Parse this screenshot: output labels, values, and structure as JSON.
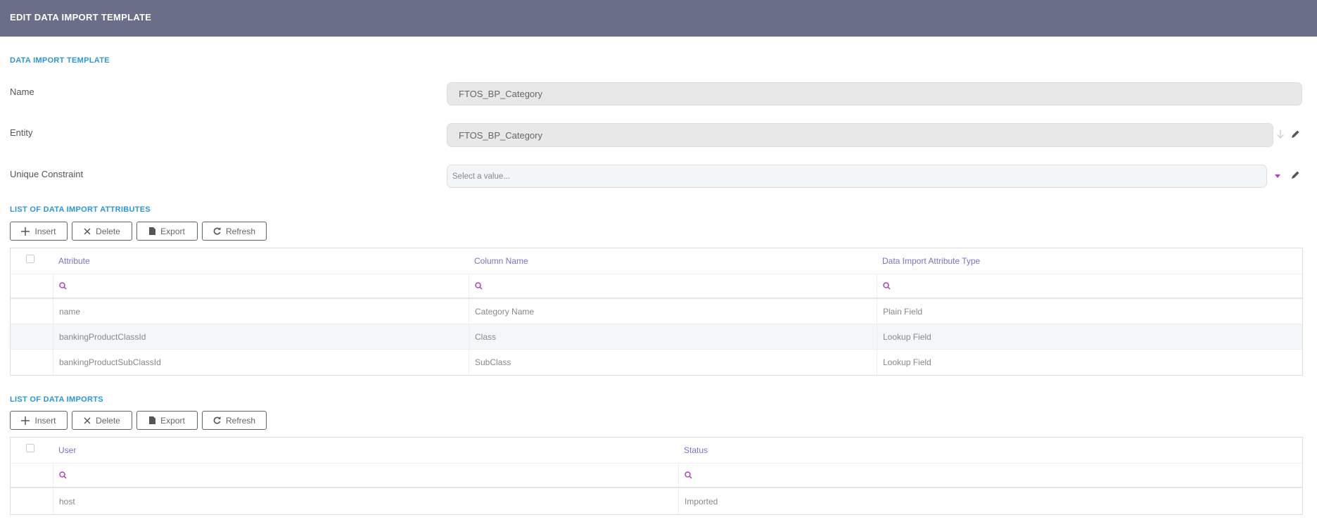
{
  "header": {
    "title": "EDIT DATA IMPORT TEMPLATE"
  },
  "form": {
    "section_title": "DATA IMPORT TEMPLATE",
    "name": {
      "label": "Name",
      "value": "FTOS_BP_Category"
    },
    "entity": {
      "label": "Entity",
      "value": "FTOS_BP_Category"
    },
    "unique_constraint": {
      "label": "Unique Constraint",
      "placeholder": "Select a value..."
    }
  },
  "toolbar": {
    "insert": "Insert",
    "delete": "Delete",
    "export": "Export",
    "refresh": "Refresh"
  },
  "attributes": {
    "title": "LIST OF DATA IMPORT ATTRIBUTES",
    "columns": [
      "Attribute",
      "Column Name",
      "Data Import Attribute Type"
    ],
    "rows": [
      [
        "name",
        "Category Name",
        "Plain Field"
      ],
      [
        "bankingProductClassId",
        "Class",
        "Lookup Field"
      ],
      [
        "bankingProductSubClassId",
        "SubClass",
        "Lookup Field"
      ]
    ]
  },
  "imports": {
    "title": "LIST OF DATA IMPORTS",
    "columns": [
      "User",
      "Status"
    ],
    "rows": [
      [
        "host",
        "Imported"
      ]
    ]
  },
  "colors": {
    "header_bg": "#6b6e88",
    "section": "#2a96d9",
    "column_header": "#7a72c8",
    "search_icon": "#b040c0",
    "stripe": "#f3f7f9"
  }
}
